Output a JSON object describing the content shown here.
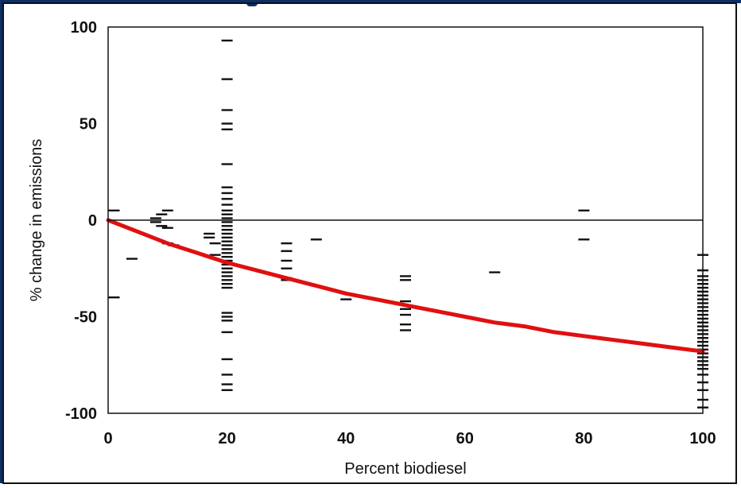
{
  "chart_data": {
    "type": "scatter",
    "title": "",
    "xlabel": "Percent biodiesel",
    "ylabel": "% change in emissions",
    "xlim": [
      0,
      100
    ],
    "ylim": [
      -100,
      100
    ],
    "x_ticks": [
      0,
      20,
      40,
      60,
      80,
      100
    ],
    "y_ticks": [
      100,
      50,
      0,
      -50,
      -100
    ],
    "x_tick_labels": [
      "0",
      "20",
      "40",
      "60",
      "80",
      "100"
    ],
    "y_tick_labels": [
      "100",
      "50",
      "0",
      "-50",
      "-100"
    ],
    "grid": false,
    "zero_line": true,
    "marker": "dash",
    "series": [
      {
        "kind": "points",
        "color": "#111111",
        "points": [
          [
            1,
            5
          ],
          [
            1,
            -40
          ],
          [
            4,
            -20
          ],
          [
            8,
            1
          ],
          [
            8,
            -1
          ],
          [
            9,
            -3
          ],
          [
            9,
            3
          ],
          [
            10,
            5
          ],
          [
            10,
            -4
          ],
          [
            10,
            -12
          ],
          [
            11,
            -13
          ],
          [
            17,
            -7
          ],
          [
            17,
            -9
          ],
          [
            18,
            -12
          ],
          [
            18,
            -18
          ],
          [
            20,
            93
          ],
          [
            20,
            73
          ],
          [
            20,
            57
          ],
          [
            20,
            50
          ],
          [
            20,
            47
          ],
          [
            20,
            29
          ],
          [
            20,
            17
          ],
          [
            20,
            14
          ],
          [
            20,
            11
          ],
          [
            20,
            8
          ],
          [
            20,
            5
          ],
          [
            20,
            3
          ],
          [
            20,
            1
          ],
          [
            20,
            -1
          ],
          [
            20,
            -3
          ],
          [
            20,
            -5
          ],
          [
            20,
            -7
          ],
          [
            20,
            -9
          ],
          [
            20,
            -11
          ],
          [
            20,
            -13
          ],
          [
            20,
            -15
          ],
          [
            20,
            -17
          ],
          [
            20,
            -19
          ],
          [
            20,
            -21
          ],
          [
            20,
            -23
          ],
          [
            20,
            -25
          ],
          [
            20,
            -27
          ],
          [
            20,
            -29
          ],
          [
            20,
            -31
          ],
          [
            20,
            -33
          ],
          [
            20,
            -35
          ],
          [
            20,
            -48
          ],
          [
            20,
            -50
          ],
          [
            20,
            -52
          ],
          [
            20,
            -58
          ],
          [
            20,
            -72
          ],
          [
            20,
            -80
          ],
          [
            20,
            -85
          ],
          [
            20,
            -88
          ],
          [
            30,
            -12
          ],
          [
            30,
            -16
          ],
          [
            30,
            -21
          ],
          [
            30,
            -25
          ],
          [
            30,
            -30
          ],
          [
            30,
            -31
          ],
          [
            35,
            -10
          ],
          [
            40,
            -41
          ],
          [
            50,
            -29
          ],
          [
            50,
            -31
          ],
          [
            50,
            -42
          ],
          [
            50,
            -46
          ],
          [
            50,
            -49
          ],
          [
            50,
            -54
          ],
          [
            50,
            -57
          ],
          [
            65,
            -27
          ],
          [
            80,
            5
          ],
          [
            80,
            -10
          ],
          [
            100,
            -18
          ],
          [
            100,
            -26
          ],
          [
            100,
            -29
          ],
          [
            100,
            -31
          ],
          [
            100,
            -33
          ],
          [
            100,
            -35
          ],
          [
            100,
            -37
          ],
          [
            100,
            -39
          ],
          [
            100,
            -41
          ],
          [
            100,
            -43
          ],
          [
            100,
            -45
          ],
          [
            100,
            -47
          ],
          [
            100,
            -49
          ],
          [
            100,
            -51
          ],
          [
            100,
            -53
          ],
          [
            100,
            -55
          ],
          [
            100,
            -57
          ],
          [
            100,
            -59
          ],
          [
            100,
            -61
          ],
          [
            100,
            -63
          ],
          [
            100,
            -65
          ],
          [
            100,
            -67
          ],
          [
            100,
            -69
          ],
          [
            100,
            -71
          ],
          [
            100,
            -73
          ],
          [
            100,
            -75
          ],
          [
            100,
            -77
          ],
          [
            100,
            -80
          ],
          [
            100,
            -84
          ],
          [
            100,
            -88
          ],
          [
            100,
            -93
          ],
          [
            100,
            -97
          ]
        ]
      },
      {
        "kind": "line",
        "color": "#e01010",
        "x": [
          0,
          5,
          10,
          15,
          20,
          25,
          30,
          35,
          40,
          45,
          50,
          55,
          60,
          65,
          70,
          75,
          80,
          85,
          90,
          95,
          100
        ],
        "y": [
          0,
          -6,
          -12,
          -17,
          -22,
          -26,
          -30,
          -34,
          -38,
          -41,
          -44,
          -47,
          -50,
          -53,
          -55,
          -58,
          -60,
          -62,
          -64,
          -66,
          -68
        ]
      }
    ]
  }
}
